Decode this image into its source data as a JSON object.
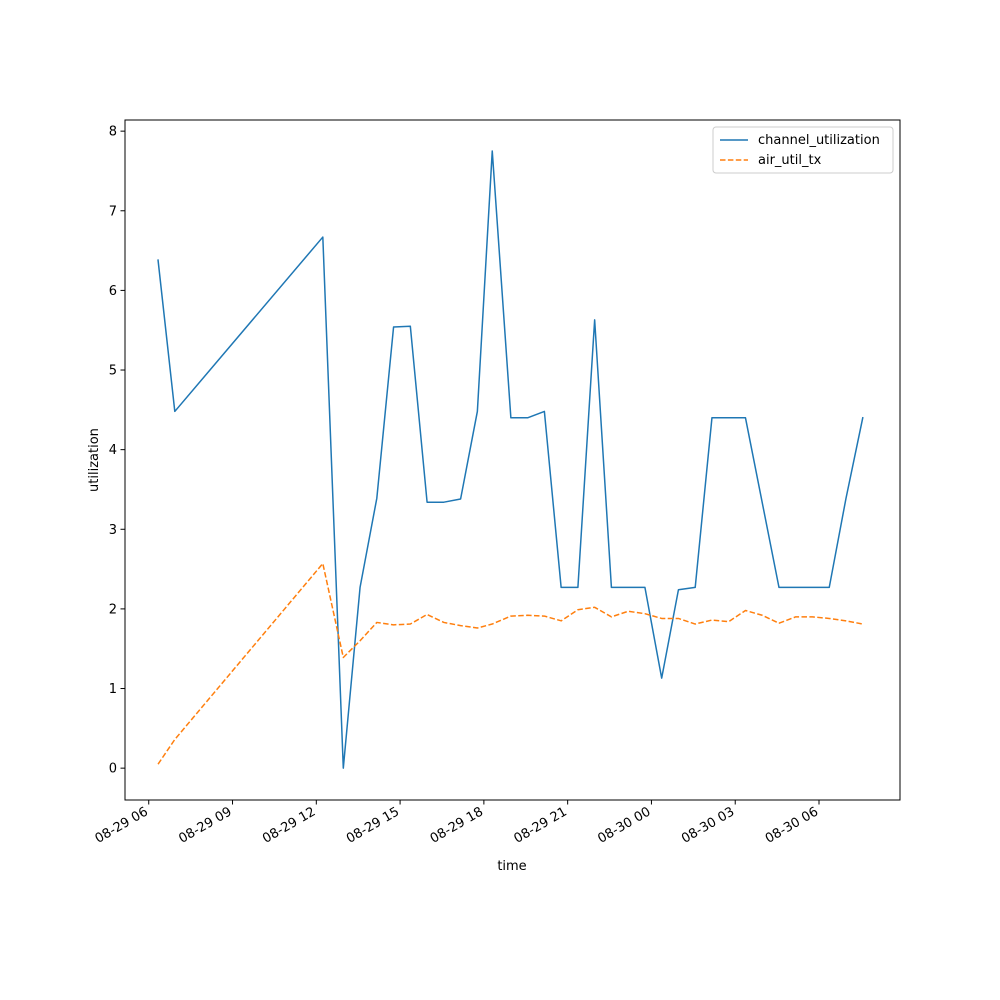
{
  "chart_data": {
    "type": "line",
    "title": "",
    "xlabel": "time",
    "ylabel": "utilization",
    "x_ticks": [
      "08-29 06",
      "08-29 09",
      "08-29 12",
      "08-29 15",
      "08-29 18",
      "08-29 21",
      "08-30 00",
      "08-30 03",
      "08-30 06"
    ],
    "y_ticks": [
      "0",
      "1",
      "2",
      "3",
      "4",
      "5",
      "6",
      "7",
      "8"
    ],
    "xlim": [
      "2024-08-29 05:09",
      "2024-08-30 08:54"
    ],
    "ylim": [
      -0.4,
      8.14
    ],
    "grid": false,
    "legend_position": "top-right",
    "series": [
      {
        "name": "channel_utilization",
        "color": "#1f77b4",
        "style": "solid",
        "points": [
          [
            "2024-08-29 06:20",
            6.38
          ],
          [
            "2024-08-29 06:56",
            4.48
          ],
          [
            "2024-08-29 12:14",
            6.67
          ],
          [
            "2024-08-29 12:58",
            0.0
          ],
          [
            "2024-08-29 13:34",
            2.27
          ],
          [
            "2024-08-29 14:10",
            3.39
          ],
          [
            "2024-08-29 14:46",
            5.54
          ],
          [
            "2024-08-29 15:22",
            5.55
          ],
          [
            "2024-08-29 15:58",
            3.34
          ],
          [
            "2024-08-29 16:34",
            3.34
          ],
          [
            "2024-08-29 17:10",
            3.38
          ],
          [
            "2024-08-29 17:46",
            4.48
          ],
          [
            "2024-08-29 18:18",
            7.75
          ],
          [
            "2024-08-29 18:58",
            4.4
          ],
          [
            "2024-08-29 19:34",
            4.4
          ],
          [
            "2024-08-29 20:10",
            4.48
          ],
          [
            "2024-08-29 20:46",
            2.27
          ],
          [
            "2024-08-29 21:22",
            2.27
          ],
          [
            "2024-08-29 21:58",
            5.63
          ],
          [
            "2024-08-29 22:34",
            2.27
          ],
          [
            "2024-08-29 23:46",
            2.27
          ],
          [
            "2024-08-30 00:22",
            1.13
          ],
          [
            "2024-08-30 00:58",
            2.24
          ],
          [
            "2024-08-30 01:34",
            2.27
          ],
          [
            "2024-08-30 02:10",
            4.4
          ],
          [
            "2024-08-30 03:22",
            4.4
          ],
          [
            "2024-08-30 04:34",
            2.27
          ],
          [
            "2024-08-30 06:22",
            2.27
          ],
          [
            "2024-08-30 06:58",
            3.39
          ],
          [
            "2024-08-30 07:34",
            4.4
          ]
        ]
      },
      {
        "name": "air_util_tx",
        "color": "#ff7f0e",
        "style": "dashed",
        "points": [
          [
            "2024-08-29 06:20",
            0.05
          ],
          [
            "2024-08-29 06:56",
            0.36
          ],
          [
            "2024-08-29 12:14",
            2.57
          ],
          [
            "2024-08-29 12:58",
            1.39
          ],
          [
            "2024-08-29 13:34",
            1.6
          ],
          [
            "2024-08-29 14:10",
            1.83
          ],
          [
            "2024-08-29 14:46",
            1.8
          ],
          [
            "2024-08-29 15:22",
            1.81
          ],
          [
            "2024-08-29 15:58",
            1.93
          ],
          [
            "2024-08-29 16:34",
            1.83
          ],
          [
            "2024-08-29 17:10",
            1.79
          ],
          [
            "2024-08-29 17:46",
            1.76
          ],
          [
            "2024-08-29 18:18",
            1.81
          ],
          [
            "2024-08-29 18:58",
            1.91
          ],
          [
            "2024-08-29 19:34",
            1.92
          ],
          [
            "2024-08-29 20:10",
            1.91
          ],
          [
            "2024-08-29 20:46",
            1.85
          ],
          [
            "2024-08-29 21:22",
            1.99
          ],
          [
            "2024-08-29 21:58",
            2.02
          ],
          [
            "2024-08-29 22:34",
            1.9
          ],
          [
            "2024-08-29 23:10",
            1.97
          ],
          [
            "2024-08-29 23:46",
            1.94
          ],
          [
            "2024-08-30 00:22",
            1.88
          ],
          [
            "2024-08-30 00:58",
            1.88
          ],
          [
            "2024-08-30 01:34",
            1.81
          ],
          [
            "2024-08-30 02:10",
            1.86
          ],
          [
            "2024-08-30 02:46",
            1.84
          ],
          [
            "2024-08-30 03:22",
            1.98
          ],
          [
            "2024-08-30 03:58",
            1.92
          ],
          [
            "2024-08-30 04:34",
            1.82
          ],
          [
            "2024-08-30 05:10",
            1.9
          ],
          [
            "2024-08-30 05:46",
            1.9
          ],
          [
            "2024-08-30 06:22",
            1.88
          ],
          [
            "2024-08-30 06:58",
            1.85
          ],
          [
            "2024-08-30 07:34",
            1.81
          ]
        ]
      }
    ]
  }
}
